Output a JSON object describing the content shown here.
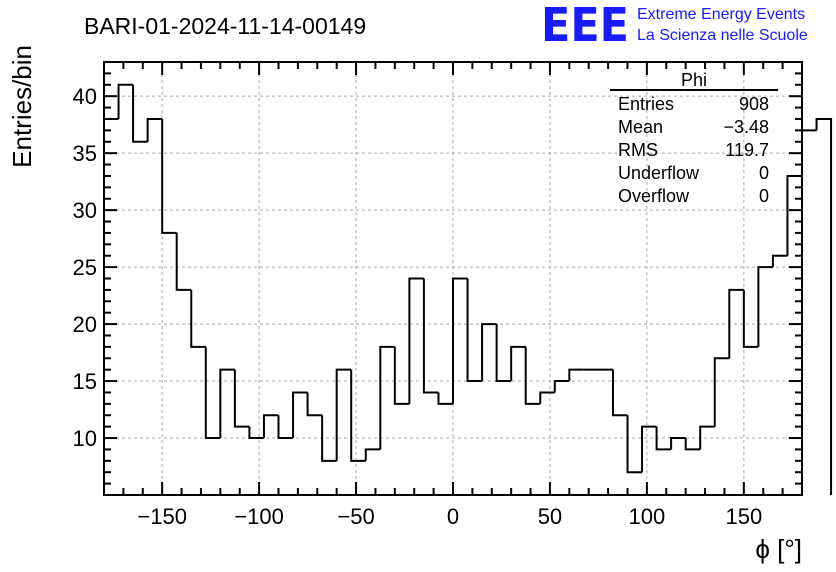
{
  "title": "BARI-01-2024-11-14-00149",
  "logo": {
    "mark": "EEE",
    "line1": "Extreme Energy Events",
    "line2": "La Scienza nelle Scuole",
    "color": "#1a1aff"
  },
  "stats": {
    "name": "Phi",
    "rows": [
      {
        "label": "Entries",
        "value": "908"
      },
      {
        "label": "Mean",
        "value": "−3.48"
      },
      {
        "label": "RMS",
        "value": "119.7"
      },
      {
        "label": "Underflow",
        "value": "0"
      },
      {
        "label": "Overflow",
        "value": "0"
      }
    ]
  },
  "chart_data": {
    "type": "bar",
    "style": "step-histogram",
    "xlabel": "ϕ [°]",
    "ylabel": "Entries/bin",
    "xlim": [
      -180,
      180
    ],
    "ylim": [
      5,
      43
    ],
    "bin_width": 7.5,
    "grid": true,
    "x_ticks": [
      {
        "value": -150,
        "label": "−150"
      },
      {
        "value": -100,
        "label": "−100"
      },
      {
        "value": -50,
        "label": "−50"
      },
      {
        "value": 0,
        "label": "0"
      },
      {
        "value": 50,
        "label": "50"
      },
      {
        "value": 100,
        "label": "100"
      },
      {
        "value": 150,
        "label": "150"
      }
    ],
    "y_ticks": [
      {
        "value": 10,
        "label": "10"
      },
      {
        "value": 15,
        "label": "15"
      },
      {
        "value": 20,
        "label": "20"
      },
      {
        "value": 25,
        "label": "25"
      },
      {
        "value": 30,
        "label": "30"
      },
      {
        "value": 35,
        "label": "35"
      },
      {
        "value": 40,
        "label": "40"
      }
    ],
    "values": [
      38,
      41,
      36,
      38,
      28,
      23,
      18,
      10,
      16,
      11,
      10,
      12,
      10,
      14,
      12,
      8,
      16,
      8,
      9,
      18,
      13,
      24,
      14,
      13,
      24,
      15,
      20,
      15,
      18,
      13,
      14,
      15,
      16,
      16,
      16,
      12,
      7,
      11,
      9,
      10,
      9,
      11,
      17,
      23,
      18,
      25,
      26,
      33,
      37,
      38
    ]
  }
}
